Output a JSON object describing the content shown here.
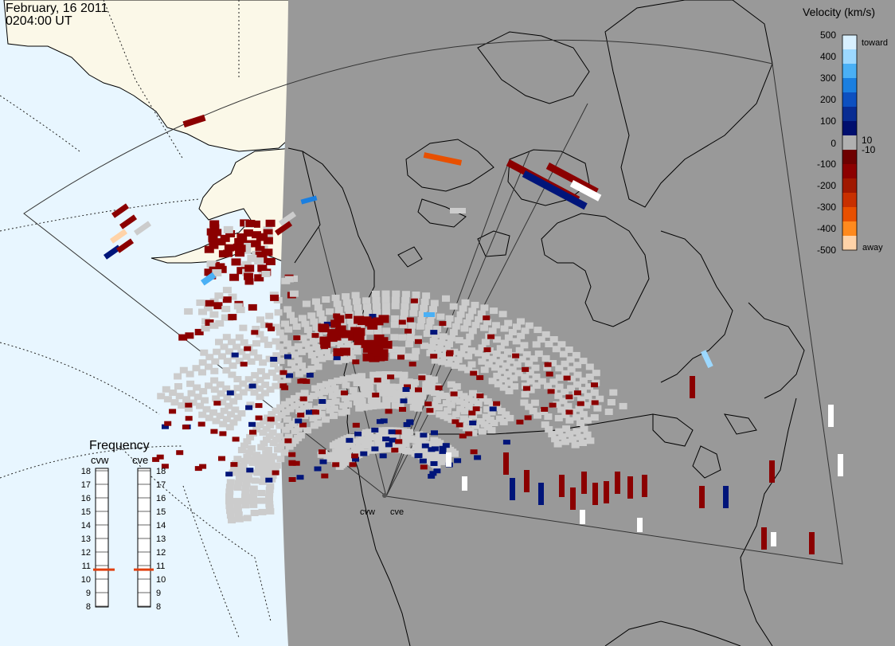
{
  "header": {
    "date": "February, 16 2011",
    "time": "0204:00 UT"
  },
  "radars": [
    {
      "code": "cvw"
    },
    {
      "code": "cve"
    }
  ],
  "velocity_scale": {
    "title": "Velocity (km/s)",
    "ticks": [
      "500",
      "400",
      "300",
      "200",
      "100",
      "10",
      "0",
      "-10",
      "-100",
      "-200",
      "-300",
      "-400",
      "-500"
    ],
    "toward_label": "toward",
    "away_label": "away",
    "colors": [
      "#d8f0ff",
      "#9cd8ff",
      "#4ab0f5",
      "#1a7fe0",
      "#0d50c0",
      "#082c92",
      "#000f6e",
      "#b0b0b0",
      "#6e0000",
      "#8c0000",
      "#a01800",
      "#c83000",
      "#e85000",
      "#ff8a1e",
      "#ffd3a8"
    ]
  },
  "frequency_panel": {
    "title": "Frequency",
    "columns": [
      "cvw",
      "cve"
    ],
    "ticks": [
      "18",
      "17",
      "16",
      "15",
      "14",
      "13",
      "12",
      "11",
      "10",
      "9",
      "8"
    ],
    "cvw_mhz": 10.7,
    "cve_mhz": 10.7,
    "marker_color": "#e04010"
  },
  "map_colors": {
    "day_ocean": "#e8f6ff",
    "day_land": "#fbf8e8",
    "night": "#999999",
    "no_scatter": "#cccccc",
    "strong_away": "#8b0000",
    "toward": "#00157a"
  }
}
